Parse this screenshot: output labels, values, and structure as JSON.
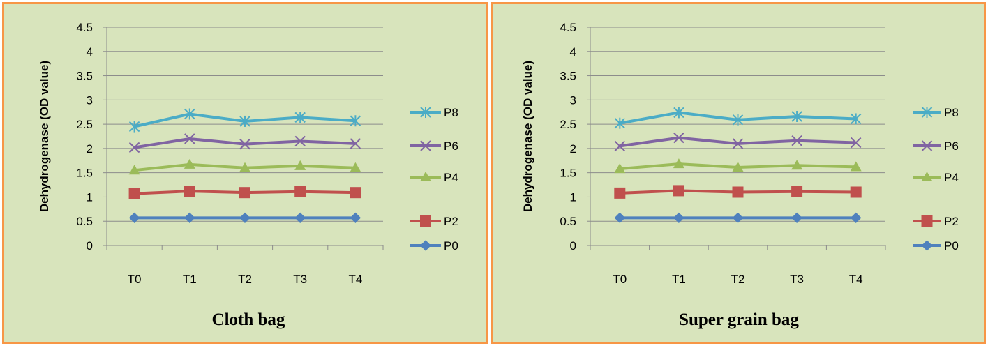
{
  "chart_data": [
    {
      "type": "line",
      "title": "",
      "xlabel": "Cloth bag",
      "ylabel": "Dehydrogenase (OD value)",
      "categories": [
        "T0",
        "T1",
        "T2",
        "T3",
        "T4"
      ],
      "ylim": [
        0,
        4.5
      ],
      "yticks": [
        0,
        0.5,
        1,
        1.5,
        2,
        2.5,
        3,
        3.5,
        4,
        4.5
      ],
      "grid": "horizontal",
      "legend": "right",
      "series": [
        {
          "name": "P0",
          "color": "#4f81bd",
          "marker": "diamond",
          "values": [
            0.57,
            0.57,
            0.57,
            0.57,
            0.57
          ]
        },
        {
          "name": "P2",
          "color": "#c0504d",
          "marker": "square",
          "values": [
            1.07,
            1.12,
            1.09,
            1.11,
            1.09
          ]
        },
        {
          "name": "P4",
          "color": "#9bbb59",
          "marker": "triangle",
          "values": [
            1.55,
            1.67,
            1.6,
            1.64,
            1.6
          ]
        },
        {
          "name": "P6",
          "color": "#8064a2",
          "marker": "x",
          "values": [
            2.02,
            2.2,
            2.09,
            2.15,
            2.1
          ]
        },
        {
          "name": "P8",
          "color": "#4bacc6",
          "marker": "star",
          "values": [
            2.45,
            2.71,
            2.56,
            2.64,
            2.57
          ]
        }
      ]
    },
    {
      "type": "line",
      "title": "",
      "xlabel": "Super grain bag",
      "ylabel": "Dehydrogenase (OD value)",
      "categories": [
        "T0",
        "T1",
        "T2",
        "T3",
        "T4"
      ],
      "ylim": [
        0,
        4.5
      ],
      "yticks": [
        0,
        0.5,
        1,
        1.5,
        2,
        2.5,
        3,
        3.5,
        4,
        4.5
      ],
      "grid": "horizontal",
      "legend": "right",
      "series": [
        {
          "name": "P0",
          "color": "#4f81bd",
          "marker": "diamond",
          "values": [
            0.57,
            0.57,
            0.57,
            0.57,
            0.57
          ]
        },
        {
          "name": "P2",
          "color": "#c0504d",
          "marker": "square",
          "values": [
            1.08,
            1.13,
            1.1,
            1.11,
            1.1
          ]
        },
        {
          "name": "P4",
          "color": "#9bbb59",
          "marker": "triangle",
          "values": [
            1.58,
            1.68,
            1.61,
            1.65,
            1.62
          ]
        },
        {
          "name": "P6",
          "color": "#8064a2",
          "marker": "x",
          "values": [
            2.05,
            2.22,
            2.1,
            2.16,
            2.12
          ]
        },
        {
          "name": "P8",
          "color": "#4bacc6",
          "marker": "star",
          "values": [
            2.52,
            2.74,
            2.59,
            2.66,
            2.61
          ]
        }
      ]
    }
  ]
}
